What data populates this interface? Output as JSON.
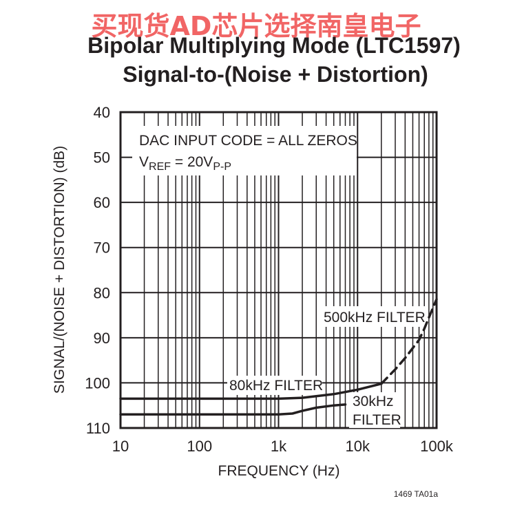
{
  "watermark": "买现货AD芯片选择南皇电子",
  "figure_id": "1469 TA01a",
  "chart_data": {
    "type": "line",
    "title": "Bipolar Multiplying Mode (LTC1597)",
    "subtitle": "Signal-to-(Noise + Distortion)",
    "xlabel": "FREQUENCY (Hz)",
    "ylabel": "SIGNAL/(NOISE + DISTORTION) (dB)",
    "x_scale": "log",
    "xlim": [
      10,
      100000
    ],
    "ylim": [
      110,
      40
    ],
    "y_inverted": true,
    "grid": true,
    "x_ticks": [
      "10",
      "100",
      "1k",
      "10k",
      "100k"
    ],
    "y_ticks": [
      "40",
      "50",
      "60",
      "70",
      "80",
      "90",
      "100",
      "110"
    ],
    "annotation": {
      "line1": "DAC INPUT CODE = ALL ZEROS",
      "line2_main": "V",
      "line2_sub1": "REF",
      "line2_eq": " = 20V",
      "line2_sub2": "P-P"
    },
    "series": [
      {
        "name": "80kHz FILTER",
        "x": [
          10,
          100,
          1000,
          2000,
          5000,
          10000,
          20000
        ],
        "y": [
          103.5,
          103.5,
          103.5,
          103.3,
          102.5,
          101.5,
          100.2
        ]
      },
      {
        "name": "500kHz FILTER",
        "x": [
          20000,
          30000,
          40000,
          60000,
          70000,
          80000,
          100000
        ],
        "y": [
          100.2,
          97,
          94.5,
          90.5,
          88,
          85.5,
          81.5
        ]
      },
      {
        "name": "30kHz FILTER",
        "x": [
          10,
          100,
          1000,
          1500,
          2000,
          3000,
          5000,
          7000
        ],
        "y": [
          107,
          107,
          107,
          106.8,
          106.2,
          105.5,
          105,
          104.8
        ]
      }
    ],
    "series_labels": {
      "s80": "80kHz FILTER",
      "s500": "500kHz FILTER",
      "s30_line1": "30kHz",
      "s30_line2": "FILTER"
    }
  }
}
